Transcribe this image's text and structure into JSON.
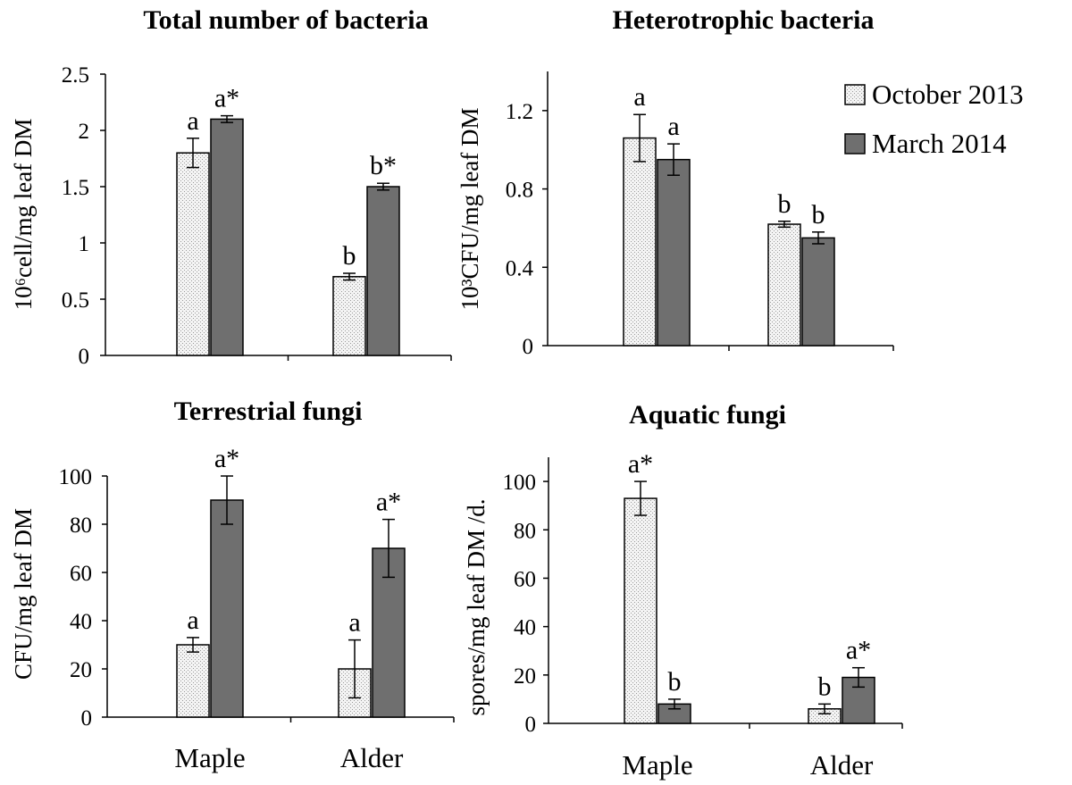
{
  "colors": {
    "october": "#ececec",
    "march": "#6f6f6f",
    "axis": "#000000"
  },
  "legend": {
    "october": "October 2013",
    "march": "March 2014",
    "placement": "top-right of Heterotrophic bacteria panel"
  },
  "chart_data": [
    {
      "type": "bar",
      "title": "Total number of bacteria",
      "ylabel": "10⁶cell/mg leaf DM",
      "xlabel": "",
      "ylim": [
        0,
        2.5
      ],
      "yticks": [
        {
          "v": 0,
          "label": "0"
        },
        {
          "v": 0.5,
          "label": "0.5"
        },
        {
          "v": 1,
          "label": "1"
        },
        {
          "v": 1.5,
          "label": "1.5"
        },
        {
          "v": 2,
          "label": "2"
        },
        {
          "v": 2.5,
          "label": "2.5"
        }
      ],
      "categories": [
        "Maple",
        "Alder"
      ],
      "show_category_labels": false,
      "series": [
        {
          "name": "October 2013",
          "values": [
            1.8,
            0.7
          ],
          "errors": [
            0.13,
            0.03
          ],
          "labels": [
            "a",
            "b"
          ]
        },
        {
          "name": "March 2014",
          "values": [
            2.1,
            1.5
          ],
          "errors": [
            0.03,
            0.03
          ],
          "labels": [
            "a*",
            "b*"
          ]
        }
      ]
    },
    {
      "type": "bar",
      "title": "Heterotrophic bacteria",
      "ylabel": "10³CFU/mg leaf DM",
      "xlabel": "",
      "ylim": [
        0,
        1.4
      ],
      "yticks": [
        {
          "v": 0,
          "label": "0"
        },
        {
          "v": 0.4,
          "label": "0.4"
        },
        {
          "v": 0.8,
          "label": "0.8"
        },
        {
          "v": 1.2,
          "label": "1.2"
        }
      ],
      "categories": [
        "Maple",
        "Alder"
      ],
      "show_category_labels": false,
      "series": [
        {
          "name": "October 2013",
          "values": [
            1.06,
            0.62
          ],
          "errors": [
            0.12,
            0.015
          ],
          "labels": [
            "a",
            "b"
          ]
        },
        {
          "name": "March 2014",
          "values": [
            0.95,
            0.55
          ],
          "errors": [
            0.08,
            0.03
          ],
          "labels": [
            "a",
            "b"
          ]
        }
      ]
    },
    {
      "type": "bar",
      "title": "Terrestrial fungi",
      "ylabel": "CFU/mg leaf DM",
      "xlabel": "",
      "ylim": [
        0,
        100
      ],
      "yticks": [
        {
          "v": 0,
          "label": "0"
        },
        {
          "v": 20,
          "label": "20"
        },
        {
          "v": 40,
          "label": "40"
        },
        {
          "v": 60,
          "label": "60"
        },
        {
          "v": 80,
          "label": "80"
        },
        {
          "v": 100,
          "label": "100"
        }
      ],
      "categories": [
        "Maple",
        "Alder"
      ],
      "show_category_labels": true,
      "series": [
        {
          "name": "October 2013",
          "values": [
            30,
            20
          ],
          "errors": [
            3,
            12
          ],
          "labels": [
            "a",
            "a"
          ]
        },
        {
          "name": "March 2014",
          "values": [
            90,
            70
          ],
          "errors": [
            10,
            12
          ],
          "labels": [
            "a*",
            "a*"
          ]
        }
      ]
    },
    {
      "type": "bar",
      "title": "Aquatic fungi",
      "ylabel": "spores/mg leaf DM /d.",
      "xlabel": "",
      "ylim": [
        0,
        110
      ],
      "yticks": [
        {
          "v": 0,
          "label": "0"
        },
        {
          "v": 20,
          "label": "20"
        },
        {
          "v": 40,
          "label": "40"
        },
        {
          "v": 60,
          "label": "60"
        },
        {
          "v": 80,
          "label": "80"
        },
        {
          "v": 100,
          "label": "100"
        }
      ],
      "categories": [
        "Maple",
        "Alder"
      ],
      "show_category_labels": true,
      "series": [
        {
          "name": "October 2013",
          "values": [
            93,
            6
          ],
          "errors": [
            7,
            2
          ],
          "labels": [
            "a*",
            "b"
          ]
        },
        {
          "name": "March 2014",
          "values": [
            8,
            19
          ],
          "errors": [
            2,
            4
          ],
          "labels": [
            "b",
            "a*"
          ]
        }
      ]
    }
  ]
}
